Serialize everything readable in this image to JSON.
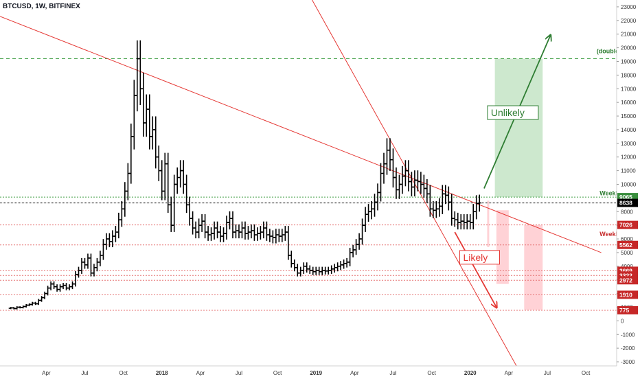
{
  "header": {
    "symbol_title": "BTCUSD, 1W, BITFINEX"
  },
  "colors": {
    "candle": "#000000",
    "red_line": "#e53935",
    "green": "#2e7d32",
    "green_box": "#c8e6c9",
    "red_box": "#ffcdd2",
    "grid_red": "#e57373",
    "axis_text": "#333333"
  },
  "chart_data": {
    "type": "ohlc",
    "title": "BTCUSD, 1W, BITFINEX",
    "ylim": [
      -3300,
      23500
    ],
    "y_ticks": [
      -3000,
      -2000,
      -1000,
      0,
      1000,
      2000,
      3000,
      4000,
      5000,
      6000,
      7000,
      8000,
      9000,
      10000,
      11000,
      12000,
      13000,
      14000,
      15000,
      16000,
      17000,
      18000,
      19000,
      20000,
      21000,
      22000,
      23000
    ],
    "x_ticks": [
      {
        "label": "Apr",
        "t": 2017.25
      },
      {
        "label": "Jul",
        "t": 2017.5
      },
      {
        "label": "Oct",
        "t": 2017.75
      },
      {
        "label": "2018",
        "t": 2018.0
      },
      {
        "label": "Apr",
        "t": 2018.25
      },
      {
        "label": "Jul",
        "t": 2018.5
      },
      {
        "label": "Oct",
        "t": 2018.75
      },
      {
        "label": "2019",
        "t": 2019.0
      },
      {
        "label": "Apr",
        "t": 2019.25
      },
      {
        "label": "Jul",
        "t": 2019.5
      },
      {
        "label": "Oct",
        "t": 2019.75
      },
      {
        "label": "2020",
        "t": 2020.0
      },
      {
        "label": "Apr",
        "t": 2020.25
      },
      {
        "label": "Jul",
        "t": 2020.5
      },
      {
        "label": "Oct",
        "t": 2020.75
      }
    ],
    "weekly_closes": [
      [
        2017.02,
        950
      ],
      [
        2017.04,
        900
      ],
      [
        2017.06,
        1000
      ],
      [
        2017.08,
        980
      ],
      [
        2017.1,
        1050
      ],
      [
        2017.12,
        1150
      ],
      [
        2017.14,
        1200
      ],
      [
        2017.16,
        1300
      ],
      [
        2017.18,
        1250
      ],
      [
        2017.2,
        1500
      ],
      [
        2017.22,
        1700
      ],
      [
        2017.24,
        2000
      ],
      [
        2017.26,
        2400
      ],
      [
        2017.28,
        2700
      ],
      [
        2017.3,
        2500
      ],
      [
        2017.32,
        2300
      ],
      [
        2017.34,
        2500
      ],
      [
        2017.36,
        2600
      ],
      [
        2017.38,
        2400
      ],
      [
        2017.4,
        2500
      ],
      [
        2017.42,
        2700
      ],
      [
        2017.44,
        3400
      ],
      [
        2017.46,
        3700
      ],
      [
        2017.48,
        4300
      ],
      [
        2017.5,
        4100
      ],
      [
        2017.52,
        4600
      ],
      [
        2017.54,
        3500
      ],
      [
        2017.56,
        3900
      ],
      [
        2017.58,
        4300
      ],
      [
        2017.6,
        4800
      ],
      [
        2017.62,
        5600
      ],
      [
        2017.64,
        6000
      ],
      [
        2017.66,
        5800
      ],
      [
        2017.68,
        6200
      ],
      [
        2017.7,
        6500
      ],
      [
        2017.72,
        7400
      ],
      [
        2017.74,
        8200
      ],
      [
        2017.76,
        9500
      ],
      [
        2017.78,
        10800
      ],
      [
        2017.8,
        13500
      ],
      [
        2017.82,
        16500
      ],
      [
        2017.84,
        19200
      ],
      [
        2017.86,
        17000
      ],
      [
        2017.88,
        14500
      ],
      [
        2017.9,
        15500
      ],
      [
        2017.92,
        13500
      ],
      [
        2017.94,
        14000
      ],
      [
        2017.96,
        12000
      ],
      [
        2017.98,
        11000
      ],
      [
        2018.0,
        9500
      ],
      [
        2018.02,
        11500
      ],
      [
        2018.04,
        8500
      ],
      [
        2018.06,
        7000
      ],
      [
        2018.08,
        10000
      ],
      [
        2018.1,
        10500
      ],
      [
        2018.12,
        11000
      ],
      [
        2018.14,
        10000
      ],
      [
        2018.16,
        8500
      ],
      [
        2018.18,
        7500
      ],
      [
        2018.2,
        6800
      ],
      [
        2018.22,
        6500
      ],
      [
        2018.24,
        7000
      ],
      [
        2018.26,
        7300
      ],
      [
        2018.28,
        6500
      ],
      [
        2018.3,
        6300
      ],
      [
        2018.32,
        6400
      ],
      [
        2018.34,
        6800
      ],
      [
        2018.36,
        6500
      ],
      [
        2018.38,
        6200
      ],
      [
        2018.4,
        6400
      ],
      [
        2018.42,
        7200
      ],
      [
        2018.44,
        7500
      ],
      [
        2018.46,
        6500
      ],
      [
        2018.48,
        6600
      ],
      [
        2018.5,
        6500
      ],
      [
        2018.52,
        6800
      ],
      [
        2018.54,
        6400
      ],
      [
        2018.56,
        6500
      ],
      [
        2018.58,
        6600
      ],
      [
        2018.6,
        6300
      ],
      [
        2018.62,
        6400
      ],
      [
        2018.64,
        6500
      ],
      [
        2018.66,
        6800
      ],
      [
        2018.68,
        6300
      ],
      [
        2018.7,
        6200
      ],
      [
        2018.72,
        6100
      ],
      [
        2018.74,
        6300
      ],
      [
        2018.76,
        6200
      ],
      [
        2018.78,
        6300
      ],
      [
        2018.8,
        6500
      ],
      [
        2018.82,
        4800
      ],
      [
        2018.84,
        4200
      ],
      [
        2018.86,
        3900
      ],
      [
        2018.88,
        3500
      ],
      [
        2018.9,
        3700
      ],
      [
        2018.92,
        4000
      ],
      [
        2018.94,
        3800
      ],
      [
        2018.96,
        3700
      ],
      [
        2018.98,
        3600
      ],
      [
        2019.0,
        3700
      ],
      [
        2019.02,
        3600
      ],
      [
        2019.04,
        3700
      ],
      [
        2019.06,
        3650
      ],
      [
        2019.08,
        3700
      ],
      [
        2019.1,
        3800
      ],
      [
        2019.12,
        3900
      ],
      [
        2019.14,
        4000
      ],
      [
        2019.16,
        4100
      ],
      [
        2019.18,
        4200
      ],
      [
        2019.2,
        4300
      ],
      [
        2019.22,
        5000
      ],
      [
        2019.24,
        5200
      ],
      [
        2019.26,
        5600
      ],
      [
        2019.28,
        6000
      ],
      [
        2019.3,
        7000
      ],
      [
        2019.32,
        7800
      ],
      [
        2019.34,
        8000
      ],
      [
        2019.36,
        8200
      ],
      [
        2019.38,
        8700
      ],
      [
        2019.4,
        9400
      ],
      [
        2019.42,
        10800
      ],
      [
        2019.44,
        11500
      ],
      [
        2019.46,
        12500
      ],
      [
        2019.48,
        11800
      ],
      [
        2019.5,
        10500
      ],
      [
        2019.52,
        9600
      ],
      [
        2019.54,
        10000
      ],
      [
        2019.56,
        10600
      ],
      [
        2019.58,
        11000
      ],
      [
        2019.6,
        10200
      ],
      [
        2019.62,
        9800
      ],
      [
        2019.64,
        10300
      ],
      [
        2019.66,
        10200
      ],
      [
        2019.68,
        10000
      ],
      [
        2019.7,
        9700
      ],
      [
        2019.72,
        9300
      ],
      [
        2019.74,
        8200
      ],
      [
        2019.76,
        8100
      ],
      [
        2019.78,
        8200
      ],
      [
        2019.8,
        8400
      ],
      [
        2019.82,
        9300
      ],
      [
        2019.84,
        9200
      ],
      [
        2019.86,
        8700
      ],
      [
        2019.88,
        7500
      ],
      [
        2019.9,
        7400
      ],
      [
        2019.92,
        7200
      ],
      [
        2019.94,
        7300
      ],
      [
        2019.96,
        7200
      ],
      [
        2019.98,
        7300
      ],
      [
        2020.0,
        7200
      ],
      [
        2020.02,
        8000
      ],
      [
        2020.04,
        8600
      ],
      [
        2020.06,
        8638
      ]
    ],
    "horizontal_levels": [
      {
        "value": 9065,
        "label": "9065",
        "style": "green"
      },
      {
        "value": 8638,
        "label": "8638",
        "style": "black"
      },
      {
        "value": 7026,
        "label": "7026",
        "style": "red"
      },
      {
        "value": 5562,
        "label": "5562",
        "style": "red"
      },
      {
        "value": 3669,
        "label": "3669",
        "style": "red"
      },
      {
        "value": 3322,
        "label": "3322",
        "style": "red"
      },
      {
        "value": 2972,
        "label": "2972",
        "style": "red"
      },
      {
        "value": 1910,
        "label": "1910",
        "style": "red"
      },
      {
        "value": 775,
        "label": "775",
        "style": "red"
      },
      {
        "value": 19200,
        "label": "",
        "style": "green-dashed"
      }
    ],
    "trendlines": [
      {
        "name": "long-term-resistance",
        "t1": 2016.95,
        "v1": 22300,
        "t2": 2020.85,
        "v2": 5000
      },
      {
        "name": "steep-resistance",
        "t1": 2018.95,
        "v1": 24000,
        "t2": 2020.3,
        "v2": -3300
      }
    ],
    "projections": {
      "green_box": {
        "t1": 2020.16,
        "t2": 2020.47,
        "v1": 9065,
        "v2": 19200
      },
      "green_arrow": {
        "t1": 2020.09,
        "t2": 2020.52,
        "v1": 9700,
        "v2": 20900
      },
      "red_arrow": {
        "t1": 2019.9,
        "t2": 2020.17,
        "v1": 6500,
        "v2": 1000
      },
      "red_bars": [
        {
          "t1": 2020.11,
          "t2": 2020.12,
          "v1": 5400,
          "v2": 8800
        },
        {
          "t1": 2020.17,
          "t2": 2020.25,
          "v1": 2700,
          "v2": 8100
        },
        {
          "t1": 2020.35,
          "t2": 2020.47,
          "v1": 800,
          "v2": 7026
        }
      ]
    },
    "annotations": [
      {
        "text": "Unlikely",
        "t": 2020.13,
        "v": 15000,
        "style": "green"
      },
      {
        "text": "Likely",
        "t": 2019.95,
        "v": 4400,
        "style": "red"
      },
      {
        "text": "Weekly",
        "t": 2020.84,
        "v": 9200,
        "style": "green"
      },
      {
        "text": "Weekly",
        "t": 2020.84,
        "v": 6200,
        "style": "red"
      },
      {
        "text": "(double)",
        "t": 2020.82,
        "v": 19600,
        "style": "green"
      }
    ]
  }
}
